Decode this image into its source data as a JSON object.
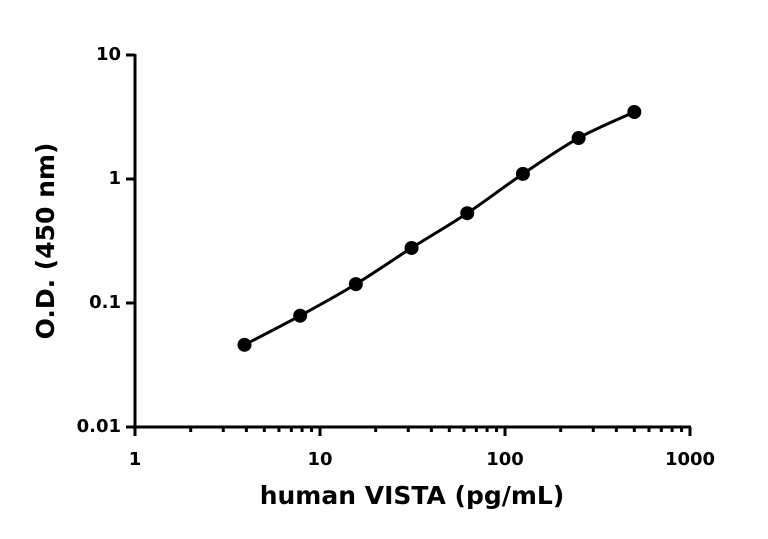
{
  "chart_data": {
    "type": "scatter",
    "x_label": "human VISTA (pg/mL)",
    "y_label": "O.D. (450 nm)",
    "series": [
      {
        "x": [
          3.906,
          7.8125,
          15.625,
          31.25,
          62.5,
          125,
          250,
          500
        ],
        "values": [
          0.046,
          0.079,
          0.142,
          0.278,
          0.53,
          1.1,
          2.14,
          3.47
        ],
        "color": "#000000"
      }
    ],
    "xlim": [
      1,
      1000
    ],
    "xticks": [
      1,
      10,
      100,
      1000
    ],
    "ylim": [
      0.01,
      10
    ],
    "yticks": [
      0.01,
      0.1,
      1,
      10
    ],
    "xscale": "log",
    "yscale": "log",
    "x_minor_ticks": true,
    "curve": true
  }
}
